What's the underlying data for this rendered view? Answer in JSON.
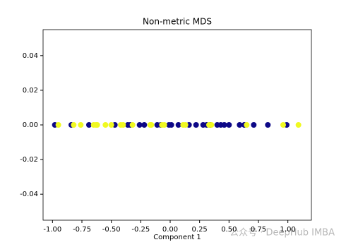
{
  "chart_data": {
    "type": "scatter",
    "title": "Non-metric MDS",
    "xlabel": "Component 1",
    "annotation": "公众号 · DeepHub IMBA",
    "xlim": [
      -1.08,
      1.2
    ],
    "ylim": [
      -0.055,
      0.055
    ],
    "xticks": [
      {
        "value": -1,
        "label": "-1.00"
      },
      {
        "value": -0.75,
        "label": "-0.75"
      },
      {
        "value": -0.5,
        "label": "-0.50"
      },
      {
        "value": -0.25,
        "label": "-0.25"
      },
      {
        "value": 0,
        "label": "0.00"
      },
      {
        "value": 0.25,
        "label": "0.25"
      },
      {
        "value": 0.5,
        "label": "0.50"
      },
      {
        "value": 0.75,
        "label": "0.75"
      },
      {
        "value": 1,
        "label": "1.00"
      }
    ],
    "yticks": [
      {
        "value": -0.04,
        "label": "-0.04"
      },
      {
        "value": -0.02,
        "label": "-0.02"
      },
      {
        "value": 0,
        "label": "0.00"
      },
      {
        "value": 0.02,
        "label": "0.02"
      },
      {
        "value": 0.04,
        "label": "0.04"
      }
    ],
    "series": [
      {
        "color": "#0d0887",
        "x": [
          -0.98,
          -0.84,
          -0.69,
          -0.47,
          -0.36,
          -0.34,
          -0.26,
          -0.22,
          -0.11,
          -0.08,
          -0.01,
          0.01,
          0.07,
          0.16,
          0.22,
          0.28,
          0.31,
          0.34,
          0.4,
          0.43,
          0.46,
          0.5,
          0.59,
          0.63,
          0.71,
          0.83,
          0.99
        ],
        "y": [
          0,
          0,
          0,
          0,
          0,
          0,
          0,
          0,
          0,
          0,
          0,
          0,
          0,
          0,
          0,
          0,
          0,
          0,
          0,
          0,
          0,
          0,
          0,
          0,
          0,
          0,
          0
        ]
      },
      {
        "color": "#f0f921",
        "x": [
          -0.95,
          -0.82,
          -0.76,
          -0.65,
          -0.63,
          -0.62,
          -0.55,
          -0.5,
          -0.42,
          -0.4,
          -0.32,
          -0.17,
          -0.16,
          -0.07,
          -0.05,
          0.11,
          0.13,
          0.33,
          0.35,
          0.65,
          0.96,
          1.09
        ],
        "y": [
          0,
          0,
          0,
          0,
          0,
          0,
          0,
          0,
          0,
          0,
          0,
          0,
          0,
          0,
          0,
          0,
          0,
          0,
          0,
          0,
          0,
          0
        ]
      }
    ]
  }
}
